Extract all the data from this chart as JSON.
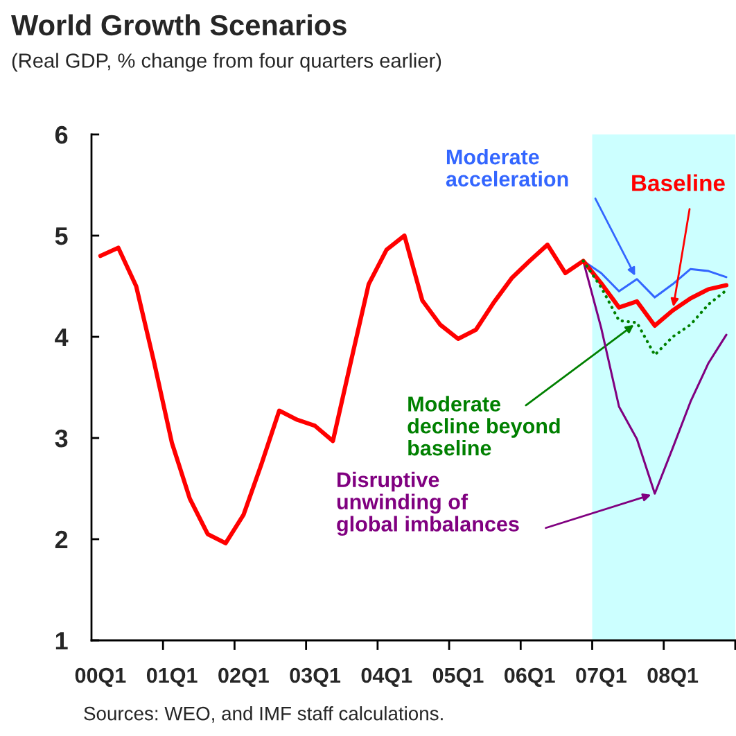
{
  "chart_data": {
    "type": "line",
    "title": "World Growth Scenarios",
    "subtitle": "(Real GDP, % change from four quarters earlier)",
    "categories": [
      "00Q1",
      null,
      null,
      null,
      "01Q1",
      null,
      null,
      null,
      "02Q1",
      null,
      null,
      null,
      "03Q1",
      null,
      null,
      null,
      "04Q1",
      null,
      null,
      null,
      "05Q1",
      null,
      null,
      null,
      "06Q1",
      null,
      null,
      null,
      "07Q1",
      null,
      null,
      null,
      "08Q1",
      null,
      null,
      null
    ],
    "series": [
      {
        "name": "Moderate\nacceleration",
        "color": "#3366ff",
        "line_style": "solid",
        "values": [
          null,
          null,
          null,
          null,
          null,
          null,
          null,
          null,
          null,
          null,
          null,
          null,
          null,
          null,
          null,
          null,
          null,
          null,
          null,
          null,
          null,
          null,
          null,
          null,
          null,
          null,
          null,
          4.75,
          4.63,
          4.45,
          4.57,
          4.39,
          4.52,
          4.67,
          4.65,
          4.59
        ]
      },
      {
        "name": "Moderate\ndecline beyond\nbaseline",
        "color": "#008000",
        "line_style": "dotted",
        "values": [
          null,
          null,
          null,
          null,
          null,
          null,
          null,
          null,
          null,
          null,
          null,
          null,
          null,
          null,
          null,
          null,
          null,
          null,
          null,
          null,
          null,
          null,
          null,
          null,
          null,
          null,
          null,
          4.75,
          4.49,
          4.16,
          4.14,
          3.82,
          4.0,
          4.12,
          4.32,
          4.46
        ]
      },
      {
        "name": "Disruptive\nunwinding of\nglobal imbalances",
        "color": "#800080",
        "line_style": "solid",
        "values": [
          null,
          null,
          null,
          null,
          null,
          null,
          null,
          null,
          null,
          null,
          null,
          null,
          null,
          null,
          null,
          null,
          null,
          null,
          null,
          null,
          null,
          null,
          null,
          null,
          null,
          null,
          null,
          4.75,
          4.09,
          3.31,
          2.99,
          2.45,
          2.9,
          3.36,
          3.74,
          4.02
        ]
      },
      {
        "name": "Baseline",
        "color": "#ff0000",
        "line_style": "solid",
        "values": [
          4.8,
          4.88,
          4.5,
          3.75,
          2.95,
          2.4,
          2.05,
          1.96,
          2.24,
          2.74,
          3.27,
          3.18,
          3.12,
          2.97,
          3.75,
          4.52,
          4.86,
          5.0,
          4.36,
          4.12,
          3.98,
          4.07,
          4.34,
          4.58,
          4.75,
          4.91,
          4.63,
          4.75,
          4.53,
          4.29,
          4.35,
          4.11,
          4.26,
          4.38,
          4.47,
          4.51
        ]
      }
    ],
    "ylim": [
      1,
      6
    ],
    "yticks": [
      1,
      2,
      3,
      4,
      5,
      6
    ],
    "grid": false,
    "annotations": [
      "Sources: WEO, and IMF staff calculations."
    ]
  }
}
